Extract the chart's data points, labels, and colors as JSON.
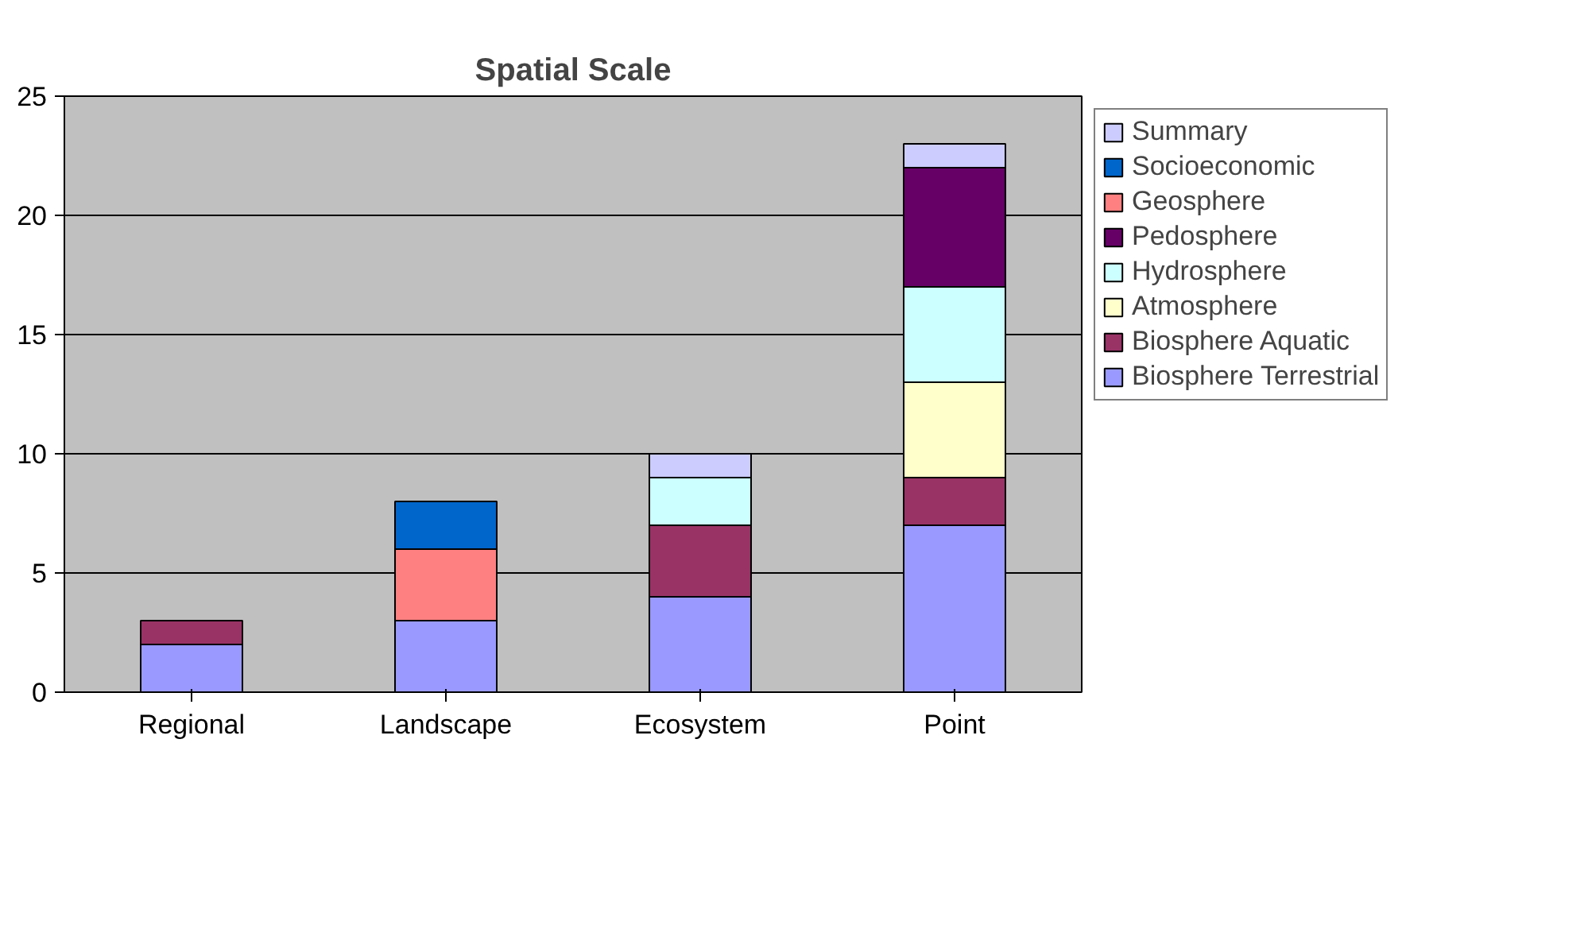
{
  "chart_data": {
    "type": "bar",
    "title": "Spatial Scale",
    "stacked": true,
    "categories": [
      "Regional",
      "Landscape",
      "Ecosystem",
      "Point"
    ],
    "series": [
      {
        "name": "Biosphere Terrestrial",
        "color": "#9999ff",
        "values": [
          2,
          3,
          4,
          7
        ]
      },
      {
        "name": "Biosphere Aquatic",
        "color": "#993366",
        "values": [
          1,
          null,
          3,
          2
        ]
      },
      {
        "name": "Atmosphere",
        "color": "#ffffcc",
        "values": [
          null,
          null,
          null,
          4
        ]
      },
      {
        "name": "Hydrosphere",
        "color": "#ccffff",
        "values": [
          null,
          null,
          2,
          4
        ]
      },
      {
        "name": "Pedosphere",
        "color": "#660066",
        "values": [
          null,
          null,
          null,
          5
        ]
      },
      {
        "name": "Geosphere",
        "color": "#ff8080",
        "values": [
          null,
          3,
          null,
          null
        ]
      },
      {
        "name": "Socioeconomic",
        "color": "#0066cc",
        "values": [
          null,
          2,
          null,
          null
        ]
      },
      {
        "name": "Summary",
        "color": "#ccccff",
        "values": [
          null,
          null,
          1,
          1
        ]
      }
    ],
    "ylim": [
      0,
      25
    ],
    "yticks": [
      0,
      5,
      10,
      15,
      20,
      25
    ],
    "grid": "y",
    "legend": "right"
  }
}
